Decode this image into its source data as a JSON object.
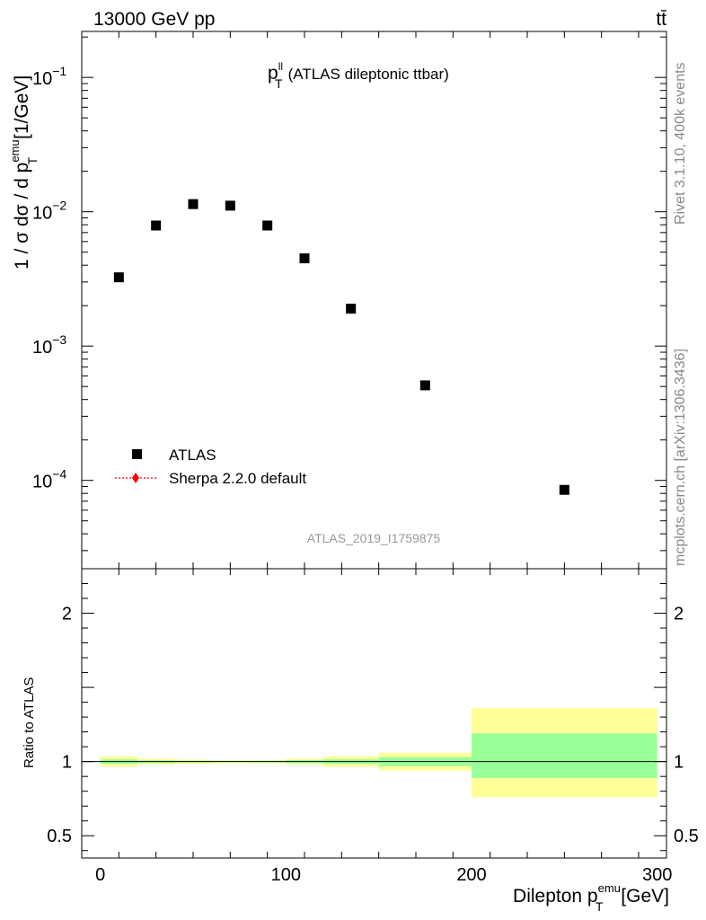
{
  "header": {
    "left_text": "13000 GeV pp",
    "right_text": "tt̄"
  },
  "side_labels": {
    "rivet": "Rivet 3.1.10,  400k events",
    "mcplots": "mcplots.cern.ch [arXiv:1306.3436]"
  },
  "chart_data": {
    "type": "scatter",
    "title": "(ATLAS dileptonic ttbar)",
    "title_symbol": {
      "base": "p",
      "sup": "ll",
      "sub": "T"
    },
    "analysis_id": "ATLAS_2019_I1759875",
    "ylabel": {
      "prefix": "1 / σ  dσ / d p",
      "sup": "emu",
      "sub": "T",
      "suffix": " [1/GeV]"
    },
    "xlabel": {
      "prefix": "Dilepton p",
      "sup": "emu",
      "sub": "T",
      "suffix": " [GeV]"
    },
    "xlim": [
      -10,
      305
    ],
    "ylim_log": [
      2.2e-05,
      0.22
    ],
    "legend": [
      {
        "name": "ATLAS",
        "marker": "square",
        "color": "#000000"
      },
      {
        "name": "Sherpa 2.2.0 default",
        "marker": "diamond",
        "color": "#ff0000"
      }
    ],
    "legend_position": "lower-left",
    "x_ticks": [
      {
        "value": 0,
        "label": "0"
      },
      {
        "value": 100,
        "label": "100"
      },
      {
        "value": 200,
        "label": "200"
      },
      {
        "value": 300,
        "label": "300"
      }
    ],
    "y_ticks": [
      {
        "value": 0.1,
        "base": "10",
        "exp": "−1"
      },
      {
        "value": 0.01,
        "base": "10",
        "exp": "−2"
      },
      {
        "value": 0.001,
        "base": "10",
        "exp": "−3"
      },
      {
        "value": 0.0001,
        "base": "10",
        "exp": "−4"
      }
    ],
    "series": [
      {
        "name": "ATLAS",
        "points": [
          {
            "x": 10,
            "y": 0.00325,
            "xlow": 0,
            "xhigh": 20
          },
          {
            "x": 30,
            "y": 0.0079,
            "xlow": 20,
            "xhigh": 40
          },
          {
            "x": 50,
            "y": 0.0114,
            "xlow": 40,
            "xhigh": 60
          },
          {
            "x": 70,
            "y": 0.0111,
            "xlow": 60,
            "xhigh": 80
          },
          {
            "x": 90,
            "y": 0.0079,
            "xlow": 80,
            "xhigh": 100
          },
          {
            "x": 110,
            "y": 0.0045,
            "xlow": 100,
            "xhigh": 120
          },
          {
            "x": 135,
            "y": 0.0019,
            "xlow": 120,
            "xhigh": 150
          },
          {
            "x": 175,
            "y": 0.00051,
            "xlow": 150,
            "xhigh": 200
          },
          {
            "x": 250,
            "y": 8.5e-05,
            "xlow": 200,
            "xhigh": 300
          }
        ]
      }
    ],
    "ratio": {
      "ylabel": "Ratio to ATLAS",
      "ylim": [
        0.35,
        2.3
      ],
      "y_ticks": [
        {
          "value": 0.5,
          "label": "0.5"
        },
        {
          "value": 1,
          "label": "1"
        },
        {
          "value": 2,
          "label": "2"
        }
      ],
      "bands": [
        {
          "xlow": 0,
          "xhigh": 20,
          "stat": [
            0.985,
            1.015
          ],
          "total": [
            0.965,
            1.035
          ]
        },
        {
          "xlow": 20,
          "xhigh": 40,
          "stat": [
            0.992,
            1.008
          ],
          "total": [
            0.98,
            1.02
          ]
        },
        {
          "xlow": 40,
          "xhigh": 60,
          "stat": [
            0.994,
            1.006
          ],
          "total": [
            0.987,
            1.013
          ]
        },
        {
          "xlow": 60,
          "xhigh": 80,
          "stat": [
            0.995,
            1.005
          ],
          "total": [
            0.99,
            1.01
          ]
        },
        {
          "xlow": 80,
          "xhigh": 100,
          "stat": [
            0.994,
            1.006
          ],
          "total": [
            0.99,
            1.01
          ]
        },
        {
          "xlow": 100,
          "xhigh": 120,
          "stat": [
            0.99,
            1.01
          ],
          "total": [
            0.98,
            1.02
          ]
        },
        {
          "xlow": 120,
          "xhigh": 150,
          "stat": [
            0.985,
            1.015
          ],
          "total": [
            0.965,
            1.035
          ]
        },
        {
          "xlow": 150,
          "xhigh": 200,
          "stat": [
            0.97,
            1.03
          ],
          "total": [
            0.94,
            1.06
          ]
        },
        {
          "xlow": 200,
          "xhigh": 300,
          "stat": [
            0.89,
            1.19
          ],
          "total": [
            0.76,
            1.36
          ]
        }
      ],
      "colors": {
        "stat": "#99ff99",
        "total": "#ffff99"
      }
    }
  }
}
